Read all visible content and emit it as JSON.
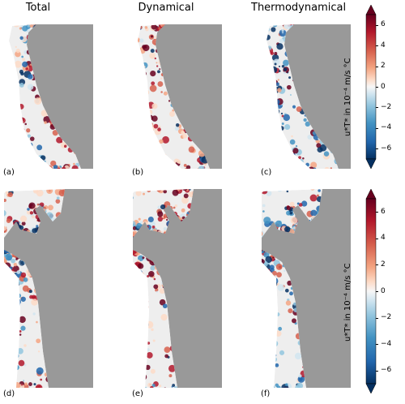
{
  "columns": [
    "Total",
    "Dynamical",
    "Thermodynamical"
  ],
  "panel_labels": [
    "(a)",
    "(b)",
    "(c)",
    "(d)",
    "(e)",
    "(f)"
  ],
  "colorbars": [
    {
      "label": "u*T* in 10⁻⁴ m/s °C",
      "ticks": [
        "6",
        "4",
        "2",
        "0",
        "−2",
        "−4",
        "−6"
      ],
      "range": [
        -7,
        7
      ]
    },
    {
      "label": "u*T* in 10⁻⁴ m/s °C",
      "ticks": [
        "6",
        "4",
        "2",
        "0",
        "−2",
        "−4",
        "−6"
      ],
      "range": [
        -7,
        7
      ]
    }
  ],
  "colors": {
    "ocean": "#999999",
    "warm": "#b2182b",
    "cold": "#2166ac",
    "neutral": "#f2f2f2"
  }
}
